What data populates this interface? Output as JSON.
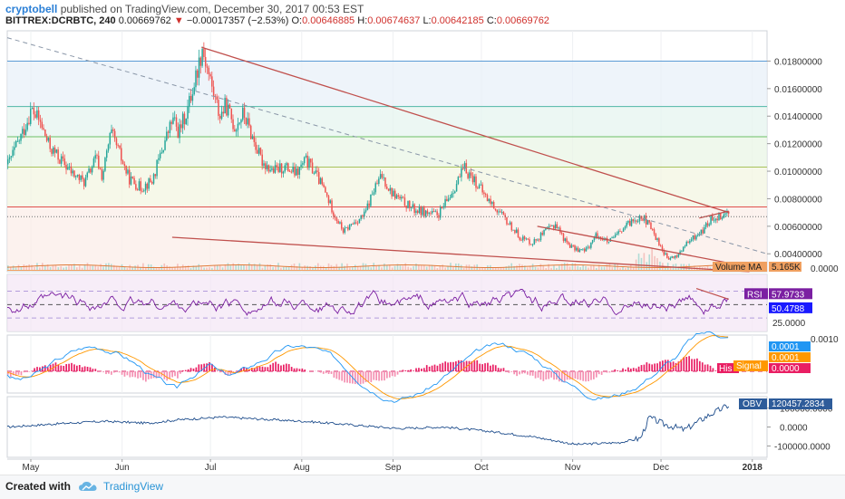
{
  "header": {
    "author": "cryptobell",
    "published_text": " published on TradingView.com, December 30, 2017 00:53 EST",
    "symbol": "BITTREX:DCRBTC, 240",
    "last_price": "0.00669762",
    "change": "−0.00017357 (−2.53%)",
    "open_label": "O:",
    "open": "0.00646885",
    "high_label": "H:",
    "high": "0.00674637",
    "low_label": "L:",
    "low": "0.00642185",
    "close_label": "C:",
    "close": "0.00669762"
  },
  "footer": {
    "created_with": "Created with",
    "brand": "TradingView"
  },
  "colors": {
    "up": "#26a69a",
    "down": "#ef5350",
    "trendline": "#c0504d",
    "rsi": "#7b1fa2",
    "macd": "#2196f3",
    "signal": "#ff9800",
    "obv": "#1e4d8c"
  },
  "chart_data": [
    {
      "type": "candlestick",
      "pane": "price",
      "y_axis_labels": [
        "0.01800000",
        "0.01600000",
        "0.01400000",
        "0.01200000",
        "0.01000000",
        "0.00800000",
        "0.00600000",
        "0.00400000"
      ],
      "y_axis_values": [
        0.018,
        0.016,
        0.014,
        0.012,
        0.01,
        0.008,
        0.006,
        0.004
      ],
      "ylim": [
        0.0027,
        0.0202
      ],
      "x_tick_labels": [
        "May",
        "Jun",
        "Jul",
        "Aug",
        "Sep",
        "Oct",
        "Nov",
        "Dec",
        "2018"
      ],
      "x_tick_values": [
        0,
        31,
        61,
        92,
        123,
        153,
        184,
        214,
        245
      ],
      "x_range": [
        -8,
        250
      ],
      "series_close_path": [
        [
          -8,
          0.0105
        ],
        [
          -3,
          0.0128
        ],
        [
          0,
          0.0145
        ],
        [
          3,
          0.0135
        ],
        [
          6,
          0.0118
        ],
        [
          10,
          0.0108
        ],
        [
          14,
          0.0098
        ],
        [
          18,
          0.0092
        ],
        [
          22,
          0.011
        ],
        [
          24,
          0.0096
        ],
        [
          27,
          0.0128
        ],
        [
          30,
          0.0112
        ],
        [
          33,
          0.0095
        ],
        [
          37,
          0.0088
        ],
        [
          41,
          0.0093
        ],
        [
          45,
          0.012
        ],
        [
          48,
          0.0138
        ],
        [
          50,
          0.0128
        ],
        [
          53,
          0.0145
        ],
        [
          55,
          0.0162
        ],
        [
          57,
          0.018
        ],
        [
          58,
          0.019
        ],
        [
          60,
          0.0172
        ],
        [
          62,
          0.0155
        ],
        [
          64,
          0.014
        ],
        [
          66,
          0.0148
        ],
        [
          69,
          0.0132
        ],
        [
          72,
          0.0142
        ],
        [
          75,
          0.0125
        ],
        [
          78,
          0.0108
        ],
        [
          82,
          0.01
        ],
        [
          86,
          0.0103
        ],
        [
          90,
          0.0098
        ],
        [
          93,
          0.0108
        ],
        [
          96,
          0.01
        ],
        [
          99,
          0.0088
        ],
        [
          103,
          0.0068
        ],
        [
          106,
          0.0056
        ],
        [
          109,
          0.0062
        ],
        [
          113,
          0.0068
        ],
        [
          116,
          0.0085
        ],
        [
          119,
          0.0097
        ],
        [
          122,
          0.0085
        ],
        [
          126,
          0.0078
        ],
        [
          130,
          0.0072
        ],
        [
          134,
          0.007
        ],
        [
          138,
          0.0068
        ],
        [
          141,
          0.0078
        ],
        [
          144,
          0.009
        ],
        [
          147,
          0.0102
        ],
        [
          150,
          0.0095
        ],
        [
          154,
          0.0082
        ],
        [
          158,
          0.0072
        ],
        [
          162,
          0.0062
        ],
        [
          166,
          0.0052
        ],
        [
          170,
          0.0048
        ],
        [
          174,
          0.0055
        ],
        [
          178,
          0.0062
        ],
        [
          181,
          0.005
        ],
        [
          184,
          0.0044
        ],
        [
          188,
          0.0042
        ],
        [
          192,
          0.0054
        ],
        [
          196,
          0.0048
        ],
        [
          200,
          0.0056
        ],
        [
          204,
          0.0064
        ],
        [
          207,
          0.0068
        ],
        [
          210,
          0.006
        ],
        [
          213,
          0.0048
        ],
        [
          216,
          0.0036
        ],
        [
          219,
          0.0038
        ],
        [
          222,
          0.0046
        ],
        [
          225,
          0.0052
        ],
        [
          228,
          0.0057
        ],
        [
          231,
          0.0066
        ],
        [
          234,
          0.0068
        ],
        [
          237,
          0.007
        ]
      ],
      "last_price_line": 0.00669762,
      "fib_levels": [
        0.018,
        0.0147,
        0.0125,
        0.0103,
        0.0074,
        0.0028
      ],
      "trendlines": [
        {
          "style": "solid",
          "from": [
            58,
            0.019
          ],
          "to": [
            237,
            0.007
          ]
        },
        {
          "style": "solid",
          "from": [
            172,
            0.006
          ],
          "to": [
            250,
            0.0028
          ]
        },
        {
          "style": "solid",
          "from": [
            48,
            0.0052
          ],
          "to": [
            244,
            0.0027
          ]
        },
        {
          "style": "solid",
          "from": [
            227,
            0.0066
          ],
          "to": [
            237,
            0.0071
          ]
        },
        {
          "style": "dashed",
          "from": [
            -8,
            0.0197
          ],
          "to": [
            250,
            0.004
          ]
        }
      ]
    },
    {
      "type": "bar",
      "pane": "volume",
      "name": "Volume MA",
      "label": "Volume MA",
      "value_label": "5.165K",
      "axis_label": "0.0000"
    },
    {
      "type": "line",
      "pane": "rsi",
      "name": "RSI",
      "label": "RSI",
      "value": "57.9733",
      "ma_value": "50.4788",
      "axis_label": "25.0000",
      "ylim": [
        10,
        95
      ],
      "bands": [
        70,
        50,
        30
      ]
    },
    {
      "type": "line",
      "pane": "macd",
      "axis_top_label": "0.0010",
      "macd_label": "0.0001",
      "signal_name": "Signal",
      "signal_label": "0.0001",
      "hist_name": "His",
      "hist_label": "0.0000"
    },
    {
      "type": "line",
      "pane": "obv",
      "name": "OBV",
      "label": "OBV",
      "value": "120457.2834",
      "y_axis_labels": [
        "100000.0000",
        "0.0000",
        "-100000.0000"
      ],
      "y_axis_values": [
        100000,
        0,
        -100000
      ],
      "ylim": [
        -160000,
        160000
      ],
      "series_path": [
        [
          -8,
          0
        ],
        [
          10,
          18000
        ],
        [
          25,
          30000
        ],
        [
          40,
          20000
        ],
        [
          50,
          38000
        ],
        [
          65,
          52000
        ],
        [
          80,
          40000
        ],
        [
          95,
          28000
        ],
        [
          110,
          10000
        ],
        [
          125,
          -8000
        ],
        [
          140,
          0
        ],
        [
          155,
          -22000
        ],
        [
          170,
          -50000
        ],
        [
          185,
          -92000
        ],
        [
          200,
          -82000
        ],
        [
          207,
          -60000
        ],
        [
          210,
          50000
        ],
        [
          215,
          15000
        ],
        [
          222,
          -15000
        ],
        [
          230,
          60000
        ],
        [
          237,
          115000
        ]
      ]
    }
  ]
}
